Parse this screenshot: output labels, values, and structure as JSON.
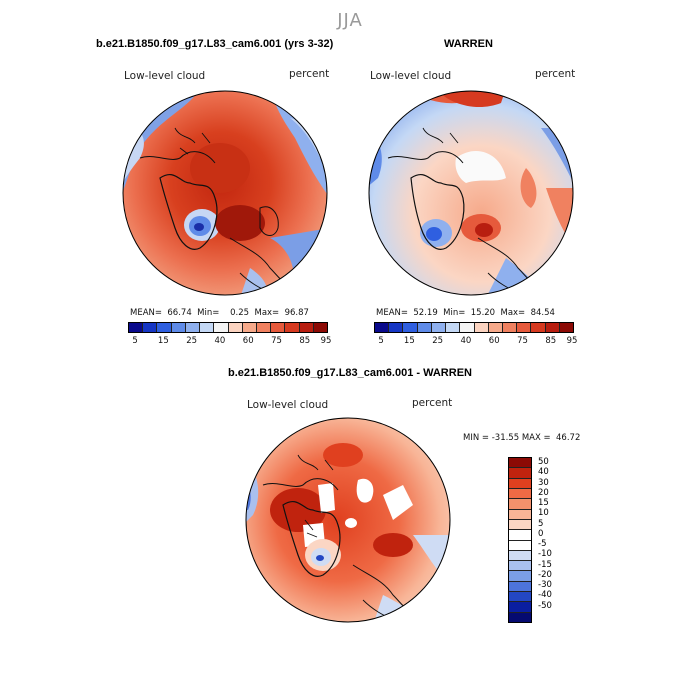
{
  "season": "JJA",
  "panels": [
    {
      "title": "b.e21.B1850.f09_g17.L83_cam6.001 (yrs 3-32)",
      "variable": "Low-level cloud",
      "units": "percent",
      "stats": "MEAN=  66.74  Min=    0.25  Max=  96.87"
    },
    {
      "title": "WARREN",
      "variable": "Low-level cloud",
      "units": "percent",
      "stats": "MEAN=  52.19  Min=  15.20  Max=  84.54"
    },
    {
      "title": "b.e21.B1850.f09_g17.L83_cam6.001 - WARREN",
      "variable": "Low-level cloud",
      "units": "percent",
      "stats": "MIN = -31.55 MAX =  46.72"
    }
  ],
  "abs_colorbar": {
    "colors": [
      "#0a0a8c",
      "#1636c4",
      "#2f5fe0",
      "#5f8be8",
      "#8fb0ee",
      "#c4d8f5",
      "#f4f4f4",
      "#fbd3c0",
      "#f6a98a",
      "#f08160",
      "#e65a3c",
      "#d63a20",
      "#b81e10",
      "#8c0a05"
    ],
    "ticks": [
      "5",
      "15",
      "25",
      "40",
      "60",
      "75",
      "85",
      "95"
    ]
  },
  "diff_colorbar": {
    "colors": [
      "#8c0a05",
      "#c0230e",
      "#e0401f",
      "#ef6a45",
      "#f4916c",
      "#f8b597",
      "#fbd6c4",
      "#ffffff",
      "#ffffff",
      "#cfdcf4",
      "#a9c0ee",
      "#7b9ee6",
      "#4d74dc",
      "#2347c4",
      "#0a1ea0",
      "#050a70"
    ],
    "ticks": [
      "50",
      "40",
      "30",
      "20",
      "15",
      "10",
      "5",
      "0",
      "-5",
      "-10",
      "-15",
      "-20",
      "-30",
      "-40",
      "-50"
    ]
  }
}
